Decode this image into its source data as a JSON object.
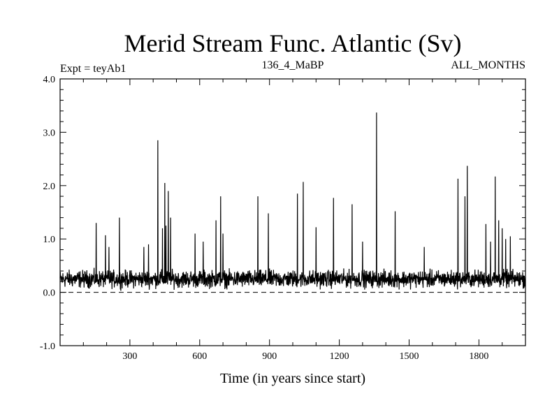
{
  "chart_data": {
    "type": "line",
    "title": "Merid Stream Func. Atlantic (Sv)",
    "subtitle_left": "Expt = teyAb1",
    "subtitle_center": "136_4_MaBP",
    "subtitle_right": "ALL_MONTHS",
    "xlabel": "Time (in years since start)",
    "ylabel": "",
    "xlim": [
      0,
      2000
    ],
    "ylim": [
      -1.0,
      4.0
    ],
    "xticks": [
      300,
      600,
      900,
      1200,
      1500,
      1800
    ],
    "yticks": [
      -1.0,
      0.0,
      1.0,
      2.0,
      3.0,
      4.0
    ],
    "ytick_labels": [
      "-1.0",
      "0.0",
      "1.0",
      "2.0",
      "3.0",
      "4.0"
    ],
    "zero_line": 0.0,
    "zero_line_style": "dashed",
    "grid": false,
    "line_color": "#000000",
    "series": [
      {
        "baseline_mean": 0.25,
        "baseline_spread": 0.18,
        "spikes": [
          [
            155,
            1.3
          ],
          [
            195,
            1.07
          ],
          [
            210,
            0.85
          ],
          [
            255,
            1.4
          ],
          [
            360,
            0.85
          ],
          [
            380,
            0.9
          ],
          [
            420,
            2.85
          ],
          [
            440,
            1.2
          ],
          [
            450,
            2.05
          ],
          [
            455,
            1.25
          ],
          [
            465,
            1.9
          ],
          [
            475,
            1.4
          ],
          [
            580,
            1.1
          ],
          [
            615,
            0.95
          ],
          [
            670,
            1.35
          ],
          [
            690,
            1.8
          ],
          [
            700,
            1.1
          ],
          [
            850,
            1.8
          ],
          [
            895,
            1.48
          ],
          [
            1020,
            1.85
          ],
          [
            1045,
            2.07
          ],
          [
            1100,
            1.22
          ],
          [
            1175,
            1.77
          ],
          [
            1255,
            1.65
          ],
          [
            1300,
            0.95
          ],
          [
            1360,
            3.37
          ],
          [
            1440,
            1.52
          ],
          [
            1565,
            0.85
          ],
          [
            1710,
            2.13
          ],
          [
            1740,
            1.8
          ],
          [
            1750,
            2.37
          ],
          [
            1830,
            1.28
          ],
          [
            1850,
            0.95
          ],
          [
            1870,
            2.17
          ],
          [
            1885,
            1.35
          ],
          [
            1900,
            1.2
          ],
          [
            1915,
            1.0
          ],
          [
            1935,
            1.05
          ]
        ]
      }
    ]
  }
}
